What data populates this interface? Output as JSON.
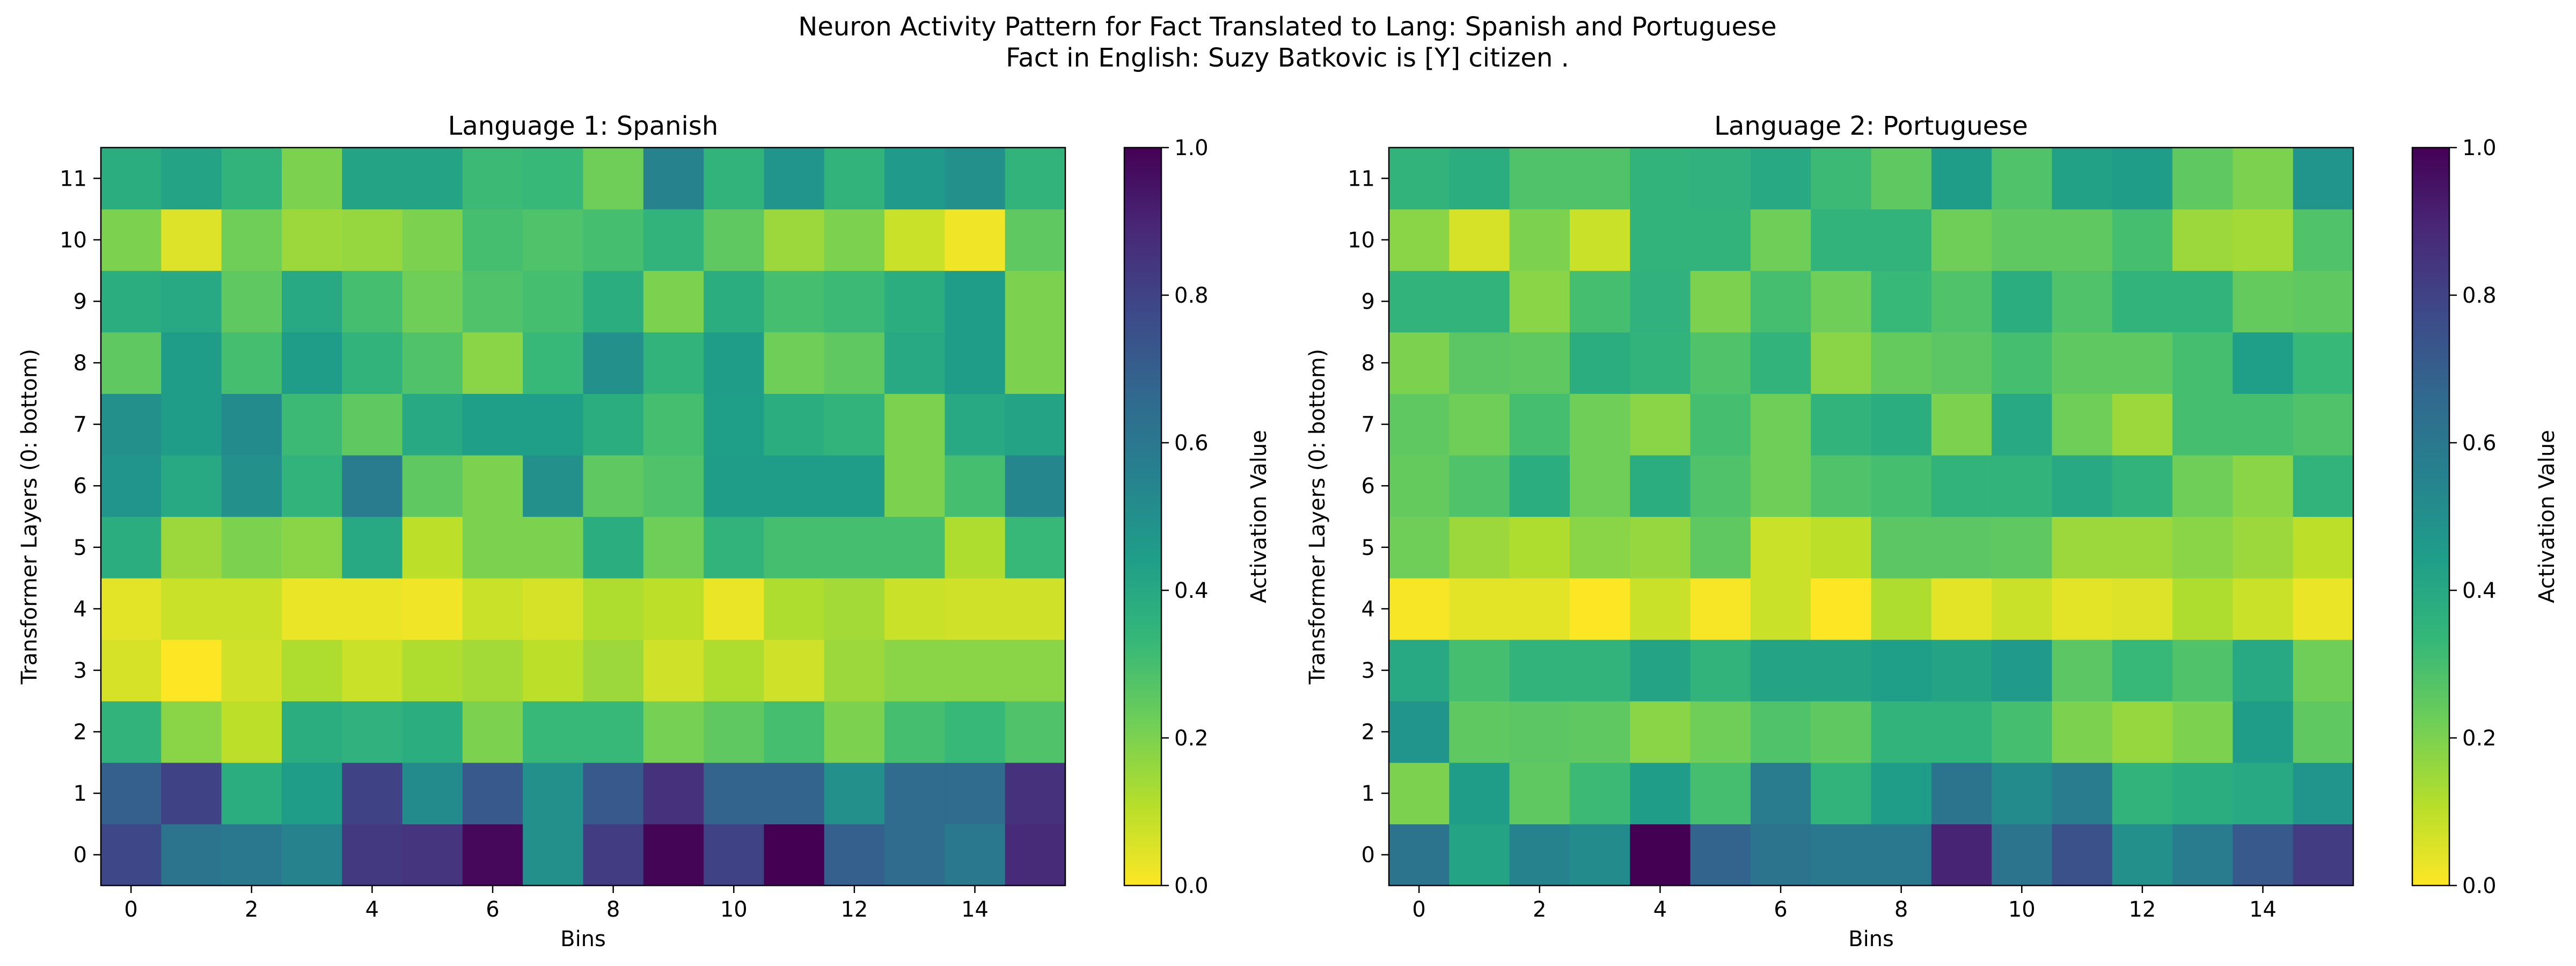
{
  "figure": {
    "title_line1": "Neuron Activity Pattern for Fact Translated to Lang: Spanish and Portuguese",
    "title_line2": "Fact in English: Suzy Batkovic is [Y] citizen ."
  },
  "colormap": {
    "name": "viridis_r",
    "stops": [
      "#fde725",
      "#b5de2b",
      "#6ece58",
      "#35b779",
      "#1f9e89",
      "#26828e",
      "#31688e",
      "#3e4989",
      "#482878",
      "#440154"
    ]
  },
  "chart_data": [
    {
      "type": "heatmap",
      "title": "Language 1: Spanish",
      "xlabel": "Bins",
      "ylabel": "Transformer Layers (0: bottom)",
      "colorbar_label": "Activation Value",
      "x_ticks": [
        0,
        2,
        4,
        6,
        8,
        10,
        12,
        14
      ],
      "y_ticks": [
        0,
        1,
        2,
        3,
        4,
        5,
        6,
        7,
        8,
        9,
        10,
        11
      ],
      "colorbar_ticks": [
        0.0,
        0.2,
        0.4,
        0.6,
        0.8,
        1.0
      ],
      "clim": [
        0,
        1
      ],
      "bins": 16,
      "layers": 12,
      "values_by_layer": [
        [
          0.78,
          0.62,
          0.6,
          0.55,
          0.83,
          0.85,
          0.98,
          0.5,
          0.82,
          0.99,
          0.8,
          1.0,
          0.7,
          0.65,
          0.6,
          0.88
        ],
        [
          0.7,
          0.8,
          0.38,
          0.45,
          0.8,
          0.52,
          0.72,
          0.5,
          0.72,
          0.86,
          0.68,
          0.68,
          0.5,
          0.65,
          0.65,
          0.86
        ],
        [
          0.35,
          0.18,
          0.1,
          0.38,
          0.36,
          0.38,
          0.2,
          0.33,
          0.33,
          0.21,
          0.25,
          0.3,
          0.2,
          0.3,
          0.33,
          0.28
        ],
        [
          0.06,
          0.0,
          0.07,
          0.12,
          0.08,
          0.12,
          0.14,
          0.1,
          0.15,
          0.07,
          0.12,
          0.07,
          0.15,
          0.18,
          0.18,
          0.18
        ],
        [
          0.04,
          0.08,
          0.08,
          0.03,
          0.03,
          0.02,
          0.08,
          0.06,
          0.12,
          0.1,
          0.03,
          0.12,
          0.14,
          0.08,
          0.07,
          0.07
        ],
        [
          0.38,
          0.15,
          0.2,
          0.18,
          0.4,
          0.1,
          0.2,
          0.2,
          0.38,
          0.22,
          0.35,
          0.3,
          0.3,
          0.3,
          0.12,
          0.33
        ],
        [
          0.48,
          0.4,
          0.5,
          0.35,
          0.58,
          0.25,
          0.2,
          0.5,
          0.25,
          0.28,
          0.45,
          0.45,
          0.45,
          0.2,
          0.3,
          0.54
        ],
        [
          0.5,
          0.45,
          0.52,
          0.32,
          0.25,
          0.4,
          0.44,
          0.44,
          0.38,
          0.3,
          0.44,
          0.38,
          0.35,
          0.2,
          0.4,
          0.42
        ],
        [
          0.25,
          0.45,
          0.3,
          0.45,
          0.35,
          0.28,
          0.18,
          0.33,
          0.5,
          0.35,
          0.45,
          0.22,
          0.25,
          0.4,
          0.45,
          0.2
        ],
        [
          0.38,
          0.4,
          0.25,
          0.4,
          0.3,
          0.22,
          0.28,
          0.3,
          0.38,
          0.2,
          0.38,
          0.3,
          0.32,
          0.38,
          0.45,
          0.2
        ],
        [
          0.2,
          0.05,
          0.22,
          0.15,
          0.16,
          0.2,
          0.3,
          0.28,
          0.3,
          0.35,
          0.25,
          0.15,
          0.2,
          0.08,
          0.02,
          0.25
        ],
        [
          0.38,
          0.42,
          0.35,
          0.2,
          0.42,
          0.42,
          0.32,
          0.33,
          0.22,
          0.55,
          0.35,
          0.48,
          0.35,
          0.46,
          0.5,
          0.35
        ]
      ]
    },
    {
      "type": "heatmap",
      "title": "Language 2: Portuguese",
      "xlabel": "Bins",
      "ylabel": "Transformer Layers (0: bottom)",
      "colorbar_label": "Activation Value",
      "x_ticks": [
        0,
        2,
        4,
        6,
        8,
        10,
        12,
        14
      ],
      "y_ticks": [
        0,
        1,
        2,
        3,
        4,
        5,
        6,
        7,
        8,
        9,
        10,
        11
      ],
      "colorbar_ticks": [
        0.0,
        0.2,
        0.4,
        0.6,
        0.8,
        1.0
      ],
      "clim": [
        0,
        1
      ],
      "bins": 16,
      "layers": 12,
      "values_by_layer": [
        [
          0.62,
          0.42,
          0.55,
          0.52,
          1.0,
          0.68,
          0.62,
          0.6,
          0.6,
          0.9,
          0.62,
          0.75,
          0.5,
          0.58,
          0.72,
          0.82
        ],
        [
          0.2,
          0.45,
          0.25,
          0.32,
          0.45,
          0.3,
          0.58,
          0.35,
          0.45,
          0.62,
          0.52,
          0.58,
          0.35,
          0.38,
          0.4,
          0.48
        ],
        [
          0.48,
          0.25,
          0.26,
          0.25,
          0.18,
          0.22,
          0.28,
          0.25,
          0.35,
          0.35,
          0.3,
          0.2,
          0.16,
          0.2,
          0.45,
          0.25
        ],
        [
          0.4,
          0.3,
          0.35,
          0.35,
          0.42,
          0.35,
          0.42,
          0.42,
          0.44,
          0.42,
          0.46,
          0.26,
          0.33,
          0.28,
          0.4,
          0.22
        ],
        [
          0.01,
          0.04,
          0.04,
          0.0,
          0.08,
          0.01,
          0.08,
          0.0,
          0.12,
          0.04,
          0.08,
          0.04,
          0.05,
          0.12,
          0.08,
          0.03
        ],
        [
          0.22,
          0.15,
          0.12,
          0.18,
          0.16,
          0.25,
          0.08,
          0.1,
          0.26,
          0.26,
          0.25,
          0.15,
          0.15,
          0.18,
          0.15,
          0.1
        ],
        [
          0.24,
          0.28,
          0.38,
          0.22,
          0.38,
          0.28,
          0.22,
          0.28,
          0.3,
          0.35,
          0.35,
          0.4,
          0.35,
          0.22,
          0.18,
          0.35
        ],
        [
          0.25,
          0.22,
          0.3,
          0.22,
          0.18,
          0.3,
          0.22,
          0.35,
          0.38,
          0.2,
          0.4,
          0.22,
          0.15,
          0.3,
          0.3,
          0.28
        ],
        [
          0.2,
          0.26,
          0.25,
          0.38,
          0.35,
          0.28,
          0.35,
          0.18,
          0.24,
          0.26,
          0.3,
          0.25,
          0.25,
          0.3,
          0.44,
          0.33
        ],
        [
          0.35,
          0.35,
          0.18,
          0.3,
          0.36,
          0.2,
          0.3,
          0.22,
          0.33,
          0.28,
          0.38,
          0.28,
          0.35,
          0.35,
          0.24,
          0.25
        ],
        [
          0.18,
          0.06,
          0.2,
          0.08,
          0.35,
          0.35,
          0.22,
          0.35,
          0.35,
          0.22,
          0.25,
          0.25,
          0.3,
          0.15,
          0.14,
          0.28
        ],
        [
          0.35,
          0.38,
          0.28,
          0.28,
          0.35,
          0.36,
          0.4,
          0.32,
          0.25,
          0.45,
          0.28,
          0.43,
          0.45,
          0.25,
          0.2,
          0.48
        ]
      ]
    }
  ]
}
